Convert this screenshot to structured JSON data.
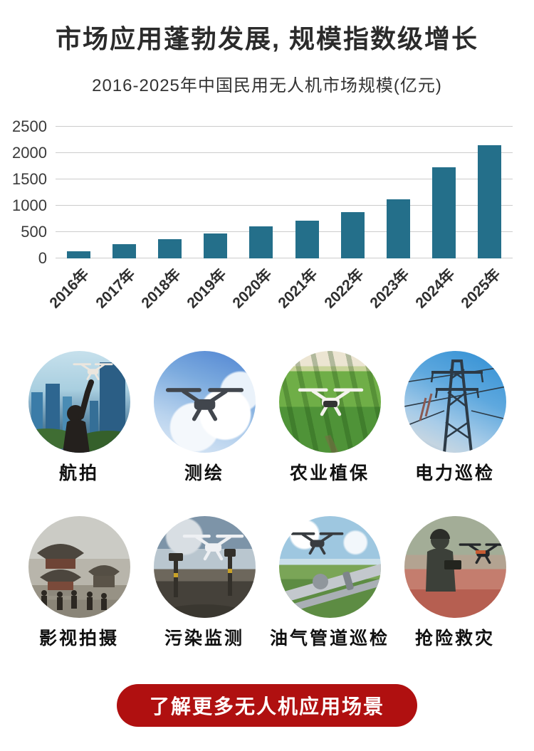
{
  "header": {
    "title": "市场应用蓬勃发展, 规模指数级增长",
    "subtitle": "2016-2025年中国民用无人机市场规模(亿元)"
  },
  "chart_data": {
    "type": "bar",
    "title": "2016-2025年中国民用无人机市场规模(亿元)",
    "categories": [
      "2016年",
      "2017年",
      "2018年",
      "2019年",
      "2020年",
      "2021年",
      "2022年",
      "2023年",
      "2024年",
      "2025年"
    ],
    "values": [
      135,
      268,
      368,
      473,
      605,
      723,
      877,
      1118,
      1732,
      2155
    ],
    "xlabel": "",
    "ylabel": "",
    "ylim": [
      0,
      2500
    ],
    "yticks": [
      0,
      500,
      1000,
      1500,
      2000,
      2500
    ],
    "grid": true,
    "legend": "none",
    "bar_color": "#246f8a",
    "grid_color": "#cccccc",
    "axis_text_color": "#3a3a3a"
  },
  "scenes": [
    {
      "label": "航拍",
      "icon": "drone-over-city-icon"
    },
    {
      "label": "测绘",
      "icon": "drone-in-sky-icon"
    },
    {
      "label": "农业植保",
      "icon": "drone-over-farm-icon"
    },
    {
      "label": "电力巡检",
      "icon": "power-tower-icon"
    },
    {
      "label": "影视拍摄",
      "icon": "film-set-temple-icon"
    },
    {
      "label": "污染监测",
      "icon": "drone-monitoring-rocks-icon"
    },
    {
      "label": "油气管道巡检",
      "icon": "drone-over-pipeline-icon"
    },
    {
      "label": "抢险救灾",
      "icon": "rescue-pilot-drone-icon"
    }
  ],
  "cta": {
    "label": "了解更多无人机应用场景",
    "bg_color": "#b01010",
    "text_color": "#ffffff"
  },
  "colors": {
    "page_bg": "#ffffff",
    "title_text": "#2b2b2b",
    "subtitle_text": "#333333",
    "caption_text": "#111111"
  }
}
